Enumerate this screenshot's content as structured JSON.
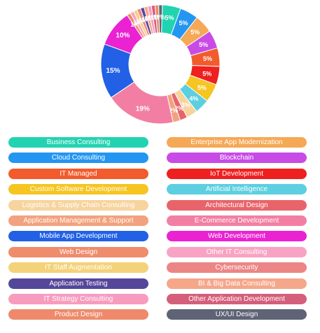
{
  "chart_data": {
    "type": "pie",
    "donut": true,
    "slices": [
      {
        "label": "Business Consulting",
        "value": 5,
        "color": "#22d3b0"
      },
      {
        "label": "Cloud Consulting",
        "value": 5,
        "color": "#2396f2"
      },
      {
        "label": "Enterprise App Modernization",
        "value": 5,
        "color": "#f5a855"
      },
      {
        "label": "Blockchain",
        "value": 5,
        "color": "#c84be6"
      },
      {
        "label": "IT Managed",
        "value": 5,
        "color": "#f25b2c"
      },
      {
        "label": "IoT Development",
        "value": 5,
        "color": "#ef2020"
      },
      {
        "label": "Custom Software Development",
        "value": 5,
        "color": "#f6c522"
      },
      {
        "label": "Artificial Intelligence",
        "value": 4,
        "color": "#5ccfe0"
      },
      {
        "label": "Logistics & Supply Chain Consulting",
        "value": 3,
        "color": "#f7d49e"
      },
      {
        "label": "Architectural Design",
        "value": 2,
        "color": "#e8646a"
      },
      {
        "label": "Application Management & Support",
        "value": 2,
        "color": "#f2a27e"
      },
      {
        "label": "E-Commerce Development",
        "value": 19,
        "color": "#f27fa3"
      },
      {
        "label": "Mobile App Development",
        "value": 15,
        "color": "#2260e6"
      },
      {
        "label": "Web Development",
        "value": 10,
        "color": "#ea22d2"
      },
      {
        "label": "Web Design",
        "value": 1,
        "color": "#ef8c6c"
      },
      {
        "label": "Other IT Consulting",
        "value": 1,
        "color": "#f8a3c3"
      },
      {
        "label": "IT Staff Augmentation",
        "value": 1,
        "color": "#f4d27a"
      },
      {
        "label": "Cybersecurity",
        "value": 1,
        "color": "#ec8585"
      },
      {
        "label": "Application Testing",
        "value": 1,
        "color": "#54479a"
      },
      {
        "label": "BI & Big Data Consulting",
        "value": 1,
        "color": "#f5a78a"
      },
      {
        "label": "IT Strategy Consulting",
        "value": 1,
        "color": "#f79cbf"
      },
      {
        "label": "Other Application Development",
        "value": 1,
        "color": "#d45f7b"
      },
      {
        "label": "Product Design",
        "value": 1,
        "color": "#ee8a6b"
      },
      {
        "label": "UX/UI Design",
        "value": 1,
        "color": "#5e6375"
      }
    ],
    "slice_labels": [
      "5%",
      "5%",
      "5%",
      "5%",
      "5%",
      "5%",
      "5%",
      "4%",
      "3%",
      "2%",
      "2%",
      "19%",
      "15%",
      "10%",
      "1%",
      "1%",
      "1%",
      "1%",
      "1%",
      "1%",
      "1%",
      "1%",
      "1%",
      "1%"
    ],
    "legend": {
      "left": [
        "Business Consulting",
        "Cloud Consulting",
        "IT Managed",
        "Custom Software Development",
        "Logistics & Supply Chain Consulting",
        "Application Management & Support",
        "Mobile App Development",
        "Web Design",
        "IT Staff Augmentation",
        "Application Testing",
        "IT Strategy Consulting",
        "Product Design"
      ],
      "right": [
        "Enterprise App Modernization",
        "Blockchain",
        "IoT Development",
        "Artificial Intelligence",
        "Architectural Design",
        "E-Commerce Development",
        "Web Development",
        "Other IT Consulting",
        "Cybersecurity",
        "BI & Big Data Consulting",
        "Other Application Development",
        "UX/UI Design"
      ],
      "placement": "bottom"
    }
  }
}
